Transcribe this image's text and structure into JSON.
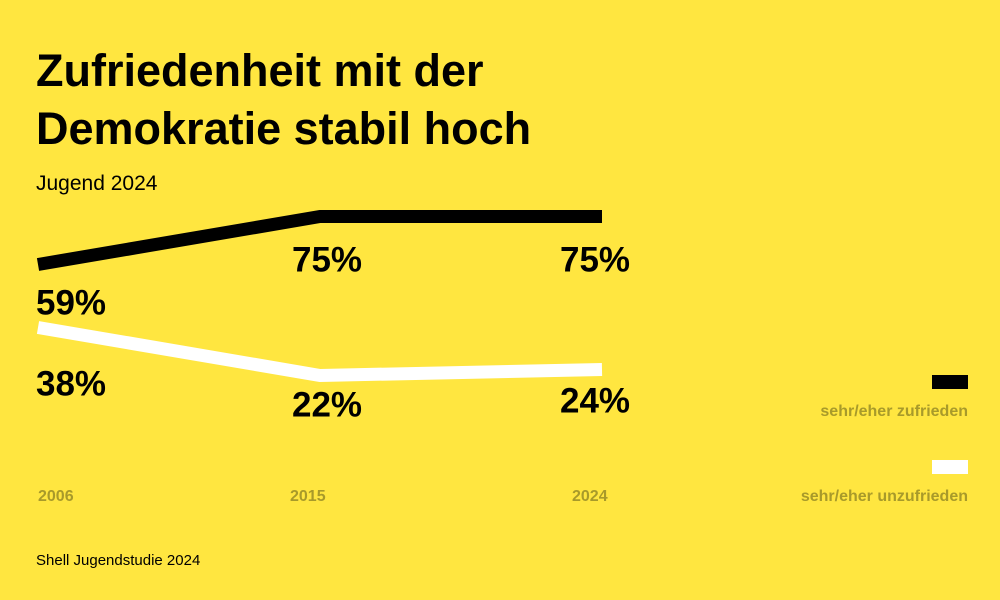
{
  "title": "Zufriedenheit mit der Demokratie stabil hoch",
  "subtitle": "Jugend 2024",
  "source": "Shell Jugendstudie 2024",
  "colors": {
    "background": "#FFE640",
    "zufrieden": "#000000",
    "unzufrieden": "#FFFFFF",
    "muted_text": "#A89A2A"
  },
  "chart_data": {
    "type": "line",
    "title": "Zufriedenheit mit der Demokratie stabil hoch",
    "subtitle": "Jugend 2024",
    "x": [
      "2006",
      "2015",
      "2024"
    ],
    "series": [
      {
        "name": "sehr/eher zufrieden",
        "values": [
          59,
          75,
          75
        ],
        "labels": [
          "59%",
          "75%",
          "75%"
        ],
        "color": "#000000"
      },
      {
        "name": "sehr/eher unzufrieden",
        "values": [
          38,
          22,
          24
        ],
        "labels": [
          "38%",
          "22%",
          "24%"
        ],
        "color": "#FFFFFF"
      }
    ],
    "unit": "%",
    "grid": false,
    "legend_position": "right"
  }
}
